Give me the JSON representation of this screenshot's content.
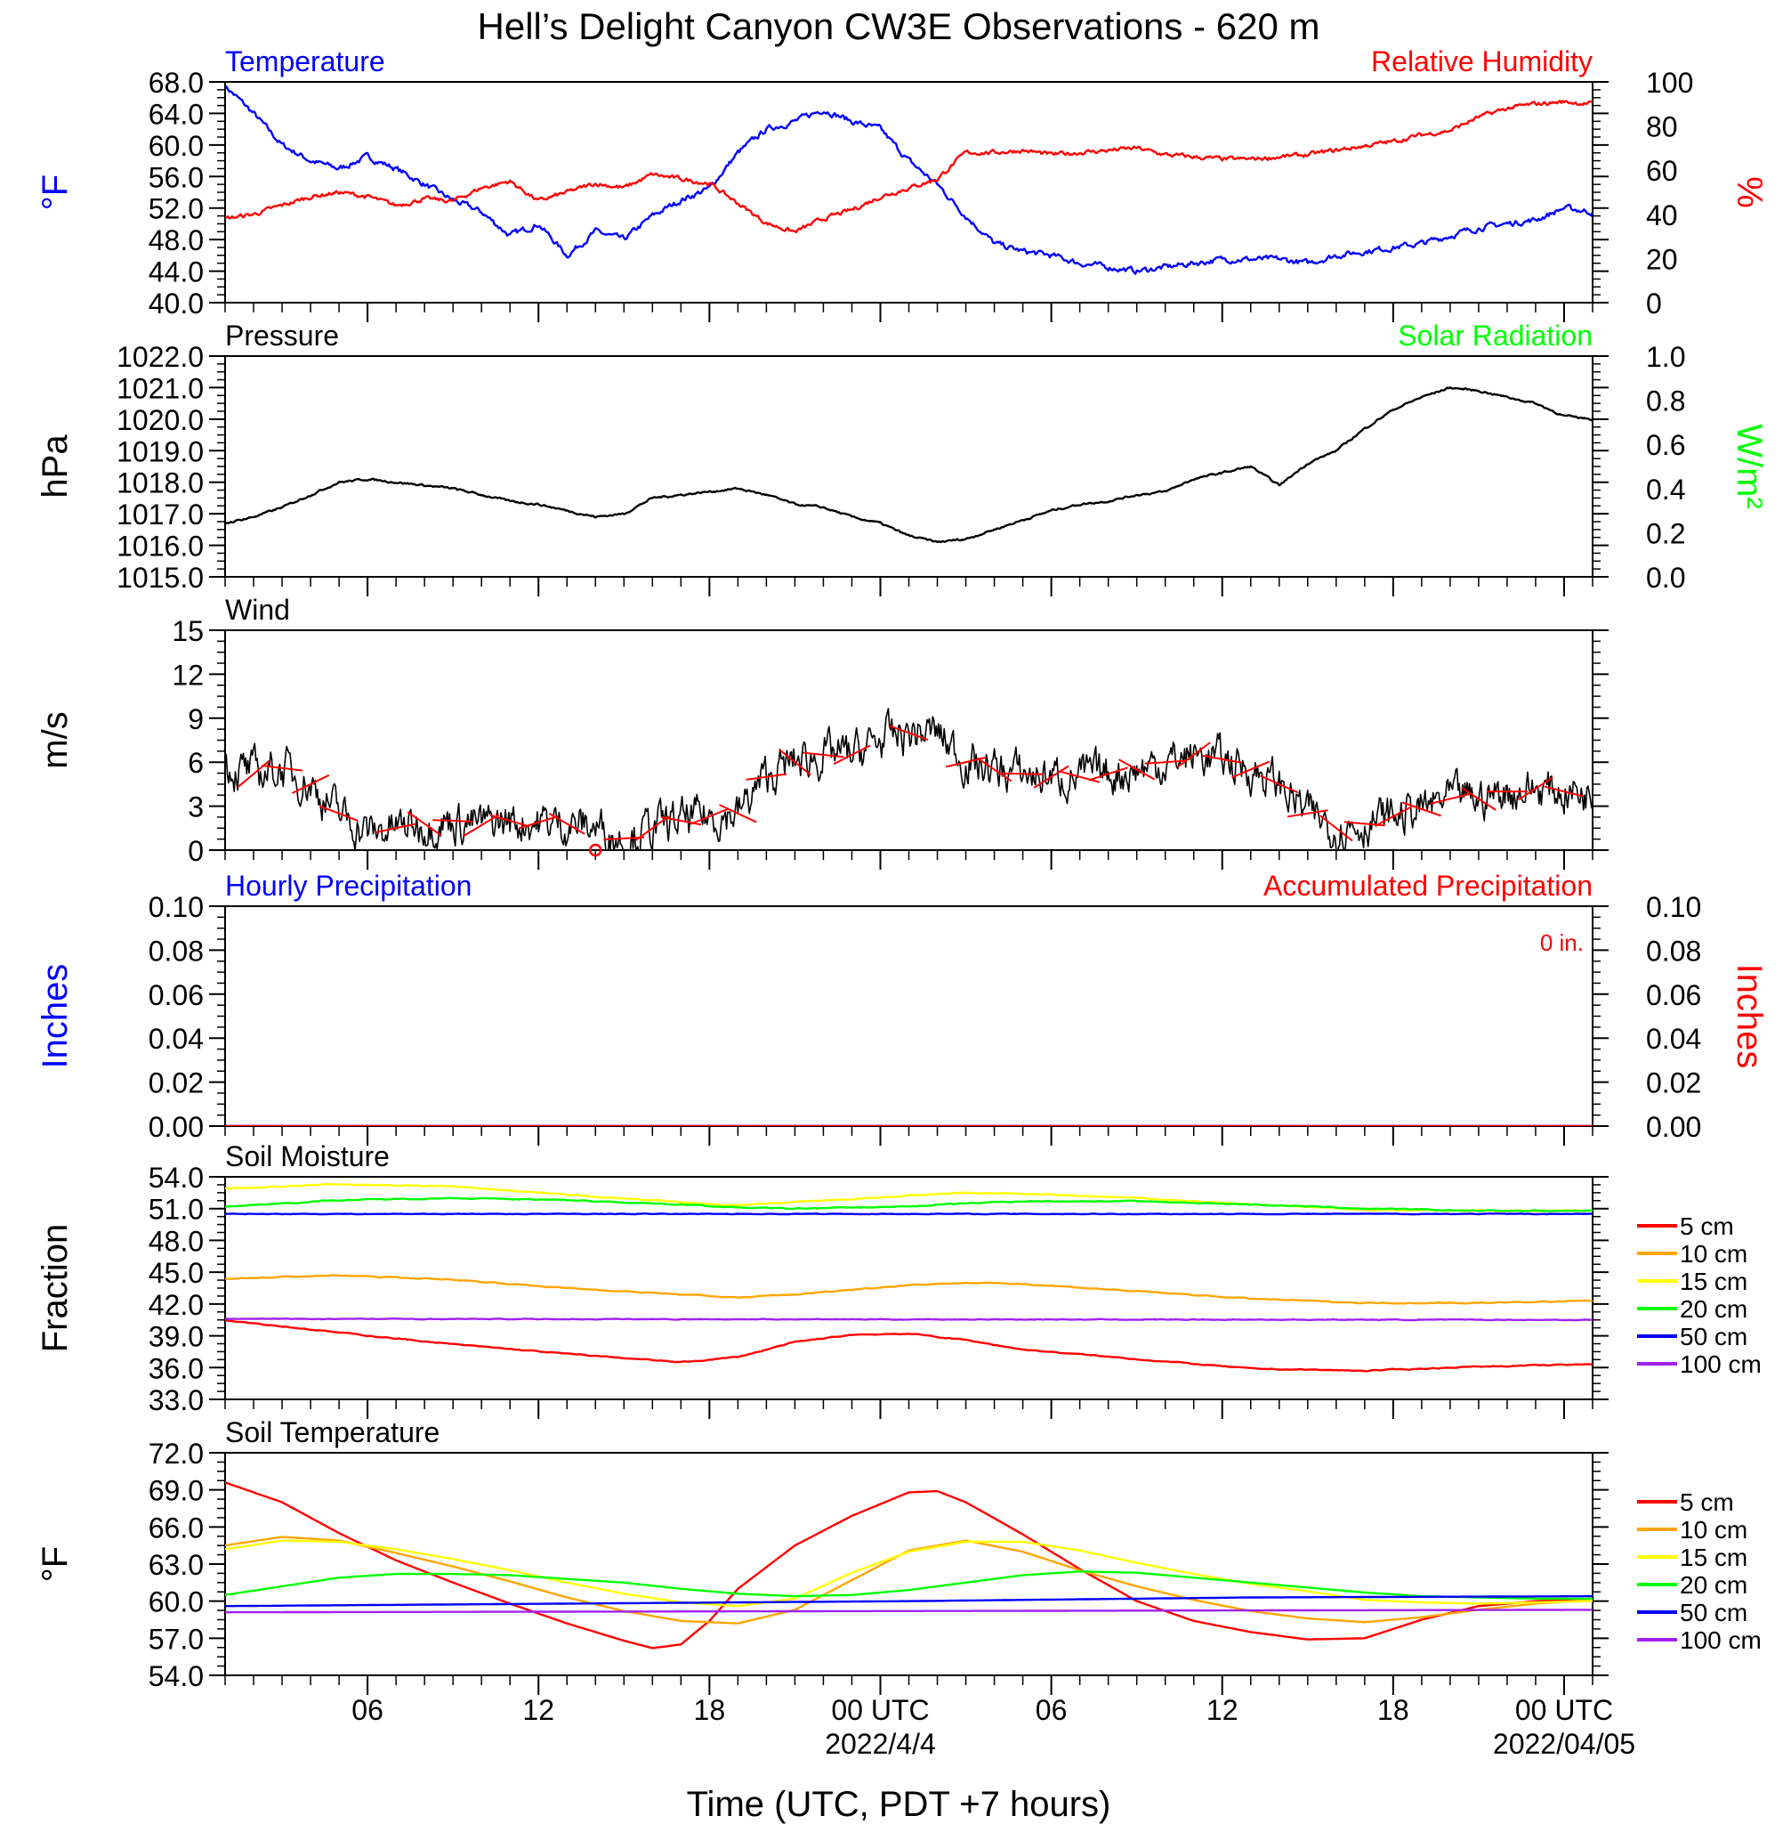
{
  "title": "Hell’s Delight Canyon CW3E Observations - 620 m",
  "xlabel": "Time (UTC, PDT +7 hours)",
  "time_axis": {
    "range_hours": [
      0,
      48
    ],
    "tick_hours": [
      5,
      11,
      17,
      23,
      29,
      35,
      41,
      47
    ],
    "tick_labels": [
      "06",
      "12",
      "18",
      "00 UTC",
      "06",
      "12",
      "18",
      "00 UTC"
    ],
    "date_labels": [
      {
        "hour": 23,
        "text": "2022/4/4"
      },
      {
        "hour": 47,
        "text": "2022/04/05"
      }
    ]
  },
  "colors": {
    "red": "#ff0000",
    "blue": "#0000ff",
    "green": "#00ff00",
    "black": "#000000",
    "orange": "#ffa500",
    "yellow": "#ffff00",
    "purple": "#a020f0"
  },
  "chart_data": [
    {
      "type": "line",
      "panel": "temperature-humidity",
      "left_title": "Temperature",
      "right_title": "Relative Humidity",
      "ylabel": "°F",
      "y2label": "%",
      "ylim": [
        40,
        68
      ],
      "y2lim": [
        0,
        100
      ],
      "yticks": [
        "40.0",
        "44.0",
        "48.0",
        "52.0",
        "56.0",
        "60.0",
        "64.0",
        "68.0"
      ],
      "y2ticks": [
        "0",
        "20",
        "40",
        "60",
        "80",
        "100"
      ],
      "series": [
        {
          "name": "Temperature",
          "axis": "left",
          "color": "#0000ff",
          "x": [
            0,
            1,
            2,
            3,
            4,
            5,
            6,
            7,
            8,
            9,
            10,
            11,
            12,
            13,
            14,
            15,
            16,
            17,
            18,
            19,
            20,
            21,
            22,
            23,
            24,
            25,
            26,
            27,
            28,
            29,
            30,
            31,
            32,
            33,
            34,
            35,
            36,
            37,
            38,
            39,
            40,
            41,
            42,
            43,
            44,
            45,
            46,
            47,
            48
          ],
          "values": [
            67.5,
            64,
            60,
            58,
            57,
            58.5,
            57,
            55,
            53,
            51.5,
            48.5,
            50,
            46,
            49,
            48,
            51,
            53,
            54.5,
            59,
            62,
            63,
            64.5,
            63,
            62,
            58,
            55,
            51,
            47.5,
            46.5,
            46,
            45,
            44.5,
            44,
            44.5,
            45,
            45.5,
            45.5,
            45.5,
            45,
            46,
            46.5,
            47,
            47.5,
            48.5,
            49.5,
            50,
            50.5,
            52,
            51.5
          ]
        },
        {
          "name": "Relative Humidity",
          "axis": "right",
          "color": "#ff0000",
          "x": [
            0,
            1,
            2,
            3,
            4,
            5,
            6,
            7,
            8,
            9,
            10,
            11,
            12,
            13,
            14,
            15,
            16,
            17,
            18,
            19,
            20,
            21,
            22,
            23,
            24,
            25,
            26,
            27,
            28,
            29,
            30,
            31,
            32,
            33,
            34,
            35,
            36,
            37,
            38,
            39,
            40,
            41,
            42,
            43,
            44,
            45,
            46,
            47,
            48
          ],
          "values": [
            38,
            40,
            44,
            48,
            50,
            48,
            44,
            47,
            46,
            52,
            55,
            46,
            50,
            54,
            52,
            58,
            56,
            54,
            45,
            36,
            32,
            38,
            42,
            48,
            52,
            56,
            68,
            68,
            69,
            67,
            68,
            69,
            70,
            67,
            66,
            65,
            65,
            66,
            67,
            69,
            71,
            73,
            76,
            78,
            84,
            88,
            90,
            91,
            90
          ]
        }
      ]
    },
    {
      "type": "line",
      "panel": "pressure-solar",
      "left_title": "Pressure",
      "right_title": "Solar Radiation",
      "ylabel": "hPa",
      "y2label": "W/m²",
      "ylim": [
        1015,
        1022
      ],
      "y2lim": [
        0,
        1
      ],
      "yticks": [
        "1015.0",
        "1016.0",
        "1017.0",
        "1018.0",
        "1019.0",
        "1020.0",
        "1021.0",
        "1022.0"
      ],
      "y2ticks": [
        "0.0",
        "0.2",
        "0.4",
        "0.6",
        "0.8",
        "1.0"
      ],
      "series": [
        {
          "name": "Pressure",
          "axis": "left",
          "color": "#000000",
          "x": [
            0,
            1,
            2,
            3,
            4,
            5,
            6,
            7,
            8,
            9,
            10,
            11,
            12,
            13,
            14,
            15,
            16,
            17,
            18,
            19,
            20,
            21,
            22,
            23,
            24,
            25,
            26,
            27,
            28,
            29,
            30,
            31,
            32,
            33,
            34,
            35,
            36,
            37,
            38,
            39,
            40,
            41,
            42,
            43,
            44,
            45,
            46,
            47,
            48
          ],
          "values": [
            1016.7,
            1016.9,
            1017.2,
            1017.6,
            1018.0,
            1018.1,
            1018.0,
            1017.9,
            1017.8,
            1017.6,
            1017.4,
            1017.3,
            1017.1,
            1016.9,
            1017.0,
            1017.5,
            1017.6,
            1017.7,
            1017.8,
            1017.6,
            1017.3,
            1017.2,
            1016.9,
            1016.7,
            1016.3,
            1016.1,
            1016.2,
            1016.5,
            1016.8,
            1017.1,
            1017.3,
            1017.4,
            1017.6,
            1017.7,
            1018.1,
            1018.3,
            1018.5,
            1017.9,
            1018.6,
            1019.0,
            1019.7,
            1020.3,
            1020.7,
            1021.0,
            1020.9,
            1020.7,
            1020.5,
            1020.1,
            1020.0
          ]
        }
      ]
    },
    {
      "type": "line",
      "panel": "wind",
      "left_title": "Wind",
      "ylabel": "m/s",
      "ylim": [
        0,
        15
      ],
      "yticks": [
        "0",
        "3",
        "6",
        "9",
        "12",
        "15"
      ],
      "series": [
        {
          "name": "Wind",
          "axis": "left",
          "color": "#000000",
          "x": [
            0,
            1,
            2,
            3,
            4,
            5,
            6,
            7,
            8,
            9,
            10,
            11,
            12,
            13,
            14,
            15,
            16,
            17,
            18,
            19,
            20,
            21,
            22,
            23,
            24,
            25,
            26,
            27,
            28,
            29,
            30,
            31,
            32,
            33,
            34,
            35,
            36,
            37,
            38,
            39,
            40,
            41,
            42,
            43,
            44,
            45,
            46,
            47,
            48
          ],
          "values": [
            5.8,
            5.2,
            5.6,
            4.5,
            2.5,
            1.2,
            1.5,
            1.8,
            2.0,
            1.7,
            2.0,
            1.9,
            1.8,
            1.6,
            0.8,
            1.5,
            2.0,
            2.3,
            2.5,
            5,
            6,
            6.5,
            6.5,
            7.5,
            8,
            8,
            6,
            5.5,
            5.2,
            5.0,
            5.0,
            5.2,
            5.5,
            6.0,
            6.5,
            6.2,
            5.5,
            4.5,
            2.5,
            1.5,
            1.8,
            2.3,
            2.8,
            3.5,
            3.5,
            4.0,
            4.2,
            4.0,
            4.0
          ]
        }
      ],
      "wind_barb_hours": [
        1,
        2,
        3,
        4,
        6,
        7,
        8,
        9,
        10,
        11,
        12,
        14,
        15,
        16,
        17,
        18,
        19,
        20,
        21,
        22,
        24,
        26,
        27,
        28,
        29,
        30,
        31,
        32,
        33,
        34,
        35,
        36,
        37,
        38,
        39,
        40,
        41,
        42,
        43,
        44,
        45,
        46,
        47
      ],
      "calm_marker_hour": 13
    },
    {
      "type": "line",
      "panel": "precipitation",
      "left_title": "Hourly Precipitation",
      "right_title": "Accumulated Precipitation",
      "annotation": "0 in.",
      "ylabel": "Inches",
      "y2label": "Inches",
      "ylim": [
        0,
        0.1
      ],
      "y2lim": [
        0,
        0.1
      ],
      "yticks": [
        "0.00",
        "0.02",
        "0.04",
        "0.06",
        "0.08",
        "0.10"
      ],
      "y2ticks": [
        "0.00",
        "0.02",
        "0.04",
        "0.06",
        "0.08",
        "0.10"
      ],
      "series": [
        {
          "name": "Hourly Precipitation",
          "axis": "left",
          "color": "#0000ff",
          "x": [
            0,
            48
          ],
          "values": [
            0,
            0
          ]
        },
        {
          "name": "Accumulated Precipitation",
          "axis": "right",
          "color": "#ff0000",
          "x": [
            0,
            48
          ],
          "values": [
            0,
            0
          ]
        }
      ]
    },
    {
      "type": "line",
      "panel": "soil-moisture",
      "left_title": "Soil Moisture",
      "ylabel": "Fraction",
      "ylim": [
        33,
        54
      ],
      "yticks": [
        "33.0",
        "36.0",
        "39.0",
        "42.0",
        "45.0",
        "48.0",
        "51.0",
        "54.0"
      ],
      "legend": "right",
      "series": [
        {
          "name": "5 cm",
          "color": "#ff0000",
          "x": [
            0,
            4,
            8,
            12,
            16,
            18,
            20,
            22,
            24,
            26,
            28,
            32,
            36,
            40,
            42,
            44,
            48
          ],
          "values": [
            40.5,
            39.3,
            38.2,
            37.3,
            36.5,
            37.0,
            38.4,
            39.1,
            39.2,
            38.6,
            37.7,
            36.8,
            35.9,
            35.7,
            35.9,
            36.1,
            36.3
          ]
        },
        {
          "name": "10 cm",
          "color": "#ffa500",
          "x": [
            0,
            4,
            8,
            12,
            16,
            18,
            20,
            24,
            26,
            28,
            32,
            36,
            40,
            44,
            48
          ],
          "values": [
            44.4,
            44.7,
            44.3,
            43.5,
            42.9,
            42.6,
            42.9,
            43.8,
            44.0,
            43.9,
            43.2,
            42.5,
            42.1,
            42.1,
            42.3
          ]
        },
        {
          "name": "15 cm",
          "color": "#ffff00",
          "x": [
            0,
            4,
            8,
            12,
            16,
            18,
            20,
            24,
            26,
            28,
            32,
            36,
            40,
            44,
            48
          ],
          "values": [
            52.9,
            53.3,
            53.1,
            52.3,
            51.6,
            51.3,
            51.6,
            52.2,
            52.5,
            52.4,
            52.0,
            51.4,
            50.9,
            50.8,
            50.8
          ]
        },
        {
          "name": "20 cm",
          "color": "#00ff00",
          "x": [
            0,
            4,
            8,
            12,
            16,
            18,
            20,
            24,
            26,
            28,
            32,
            36,
            40,
            44,
            48
          ],
          "values": [
            51.2,
            51.8,
            52.0,
            51.8,
            51.4,
            51.1,
            51.0,
            51.2,
            51.5,
            51.7,
            51.7,
            51.4,
            51.0,
            50.8,
            50.8
          ]
        },
        {
          "name": "50 cm",
          "color": "#0000ff",
          "x": [
            0,
            48
          ],
          "values": [
            50.5,
            50.5
          ]
        },
        {
          "name": "100 cm",
          "color": "#a020f0",
          "x": [
            0,
            48
          ],
          "values": [
            40.6,
            40.5
          ]
        }
      ]
    },
    {
      "type": "line",
      "panel": "soil-temperature",
      "left_title": "Soil Temperature",
      "ylabel": "°F",
      "ylim": [
        54,
        72
      ],
      "yticks": [
        "54.0",
        "57.0",
        "60.0",
        "63.0",
        "66.0",
        "69.0",
        "72.0"
      ],
      "legend": "right",
      "series": [
        {
          "name": "5 cm",
          "color": "#ff0000",
          "x": [
            0,
            2,
            4,
            6,
            8,
            10,
            12,
            14,
            15,
            16,
            17,
            18,
            20,
            22,
            24,
            25,
            26,
            28,
            30,
            32,
            34,
            36,
            38,
            40,
            42,
            44,
            46,
            48
          ],
          "values": [
            69.6,
            68.0,
            65.5,
            63.3,
            61.5,
            59.8,
            58.2,
            56.8,
            56.2,
            56.5,
            58.4,
            61.0,
            64.5,
            66.9,
            68.8,
            68.9,
            68.0,
            65.4,
            62.6,
            60.0,
            58.4,
            57.5,
            56.9,
            57.0,
            58.5,
            59.6,
            60.0,
            60.2
          ]
        },
        {
          "name": "10 cm",
          "color": "#ffa500",
          "x": [
            0,
            2,
            4,
            6,
            8,
            10,
            12,
            14,
            16,
            18,
            20,
            22,
            24,
            26,
            28,
            30,
            32,
            34,
            36,
            38,
            40,
            42,
            44,
            46,
            48
          ],
          "values": [
            64.5,
            65.2,
            64.9,
            63.9,
            62.8,
            61.6,
            60.3,
            59.2,
            58.4,
            58.2,
            59.3,
            61.7,
            64.1,
            64.9,
            64.0,
            62.5,
            61.2,
            60.1,
            59.2,
            58.6,
            58.3,
            58.7,
            59.3,
            59.8,
            60.1
          ]
        },
        {
          "name": "15 cm",
          "color": "#ffff00",
          "x": [
            0,
            2,
            4,
            6,
            8,
            10,
            12,
            14,
            16,
            18,
            20,
            22,
            24,
            26,
            28,
            30,
            32,
            34,
            36,
            38,
            40,
            42,
            44,
            46,
            48
          ],
          "values": [
            64.2,
            64.9,
            64.8,
            64.2,
            63.4,
            62.5,
            61.5,
            60.6,
            59.9,
            59.6,
            60.2,
            62.3,
            64.0,
            64.8,
            64.8,
            64.1,
            63.1,
            62.2,
            61.4,
            60.8,
            60.1,
            59.9,
            59.8,
            59.9,
            60.0
          ]
        },
        {
          "name": "20 cm",
          "color": "#00ff00",
          "x": [
            0,
            2,
            4,
            6,
            8,
            10,
            12,
            14,
            16,
            18,
            20,
            22,
            24,
            26,
            28,
            30,
            32,
            34,
            36,
            38,
            40,
            42,
            44,
            46,
            48
          ],
          "values": [
            60.5,
            61.2,
            61.9,
            62.2,
            62.2,
            62.1,
            61.8,
            61.5,
            61.0,
            60.6,
            60.4,
            60.5,
            60.9,
            61.5,
            62.1,
            62.4,
            62.3,
            61.9,
            61.5,
            61.1,
            60.7,
            60.4,
            60.3,
            60.2,
            60.2
          ]
        },
        {
          "name": "50 cm",
          "color": "#0000ff",
          "x": [
            0,
            12,
            24,
            36,
            48
          ],
          "values": [
            59.6,
            59.8,
            60.0,
            60.3,
            60.4
          ]
        },
        {
          "name": "100 cm",
          "color": "#a020f0",
          "x": [
            0,
            48
          ],
          "values": [
            59.1,
            59.3
          ]
        }
      ]
    }
  ]
}
